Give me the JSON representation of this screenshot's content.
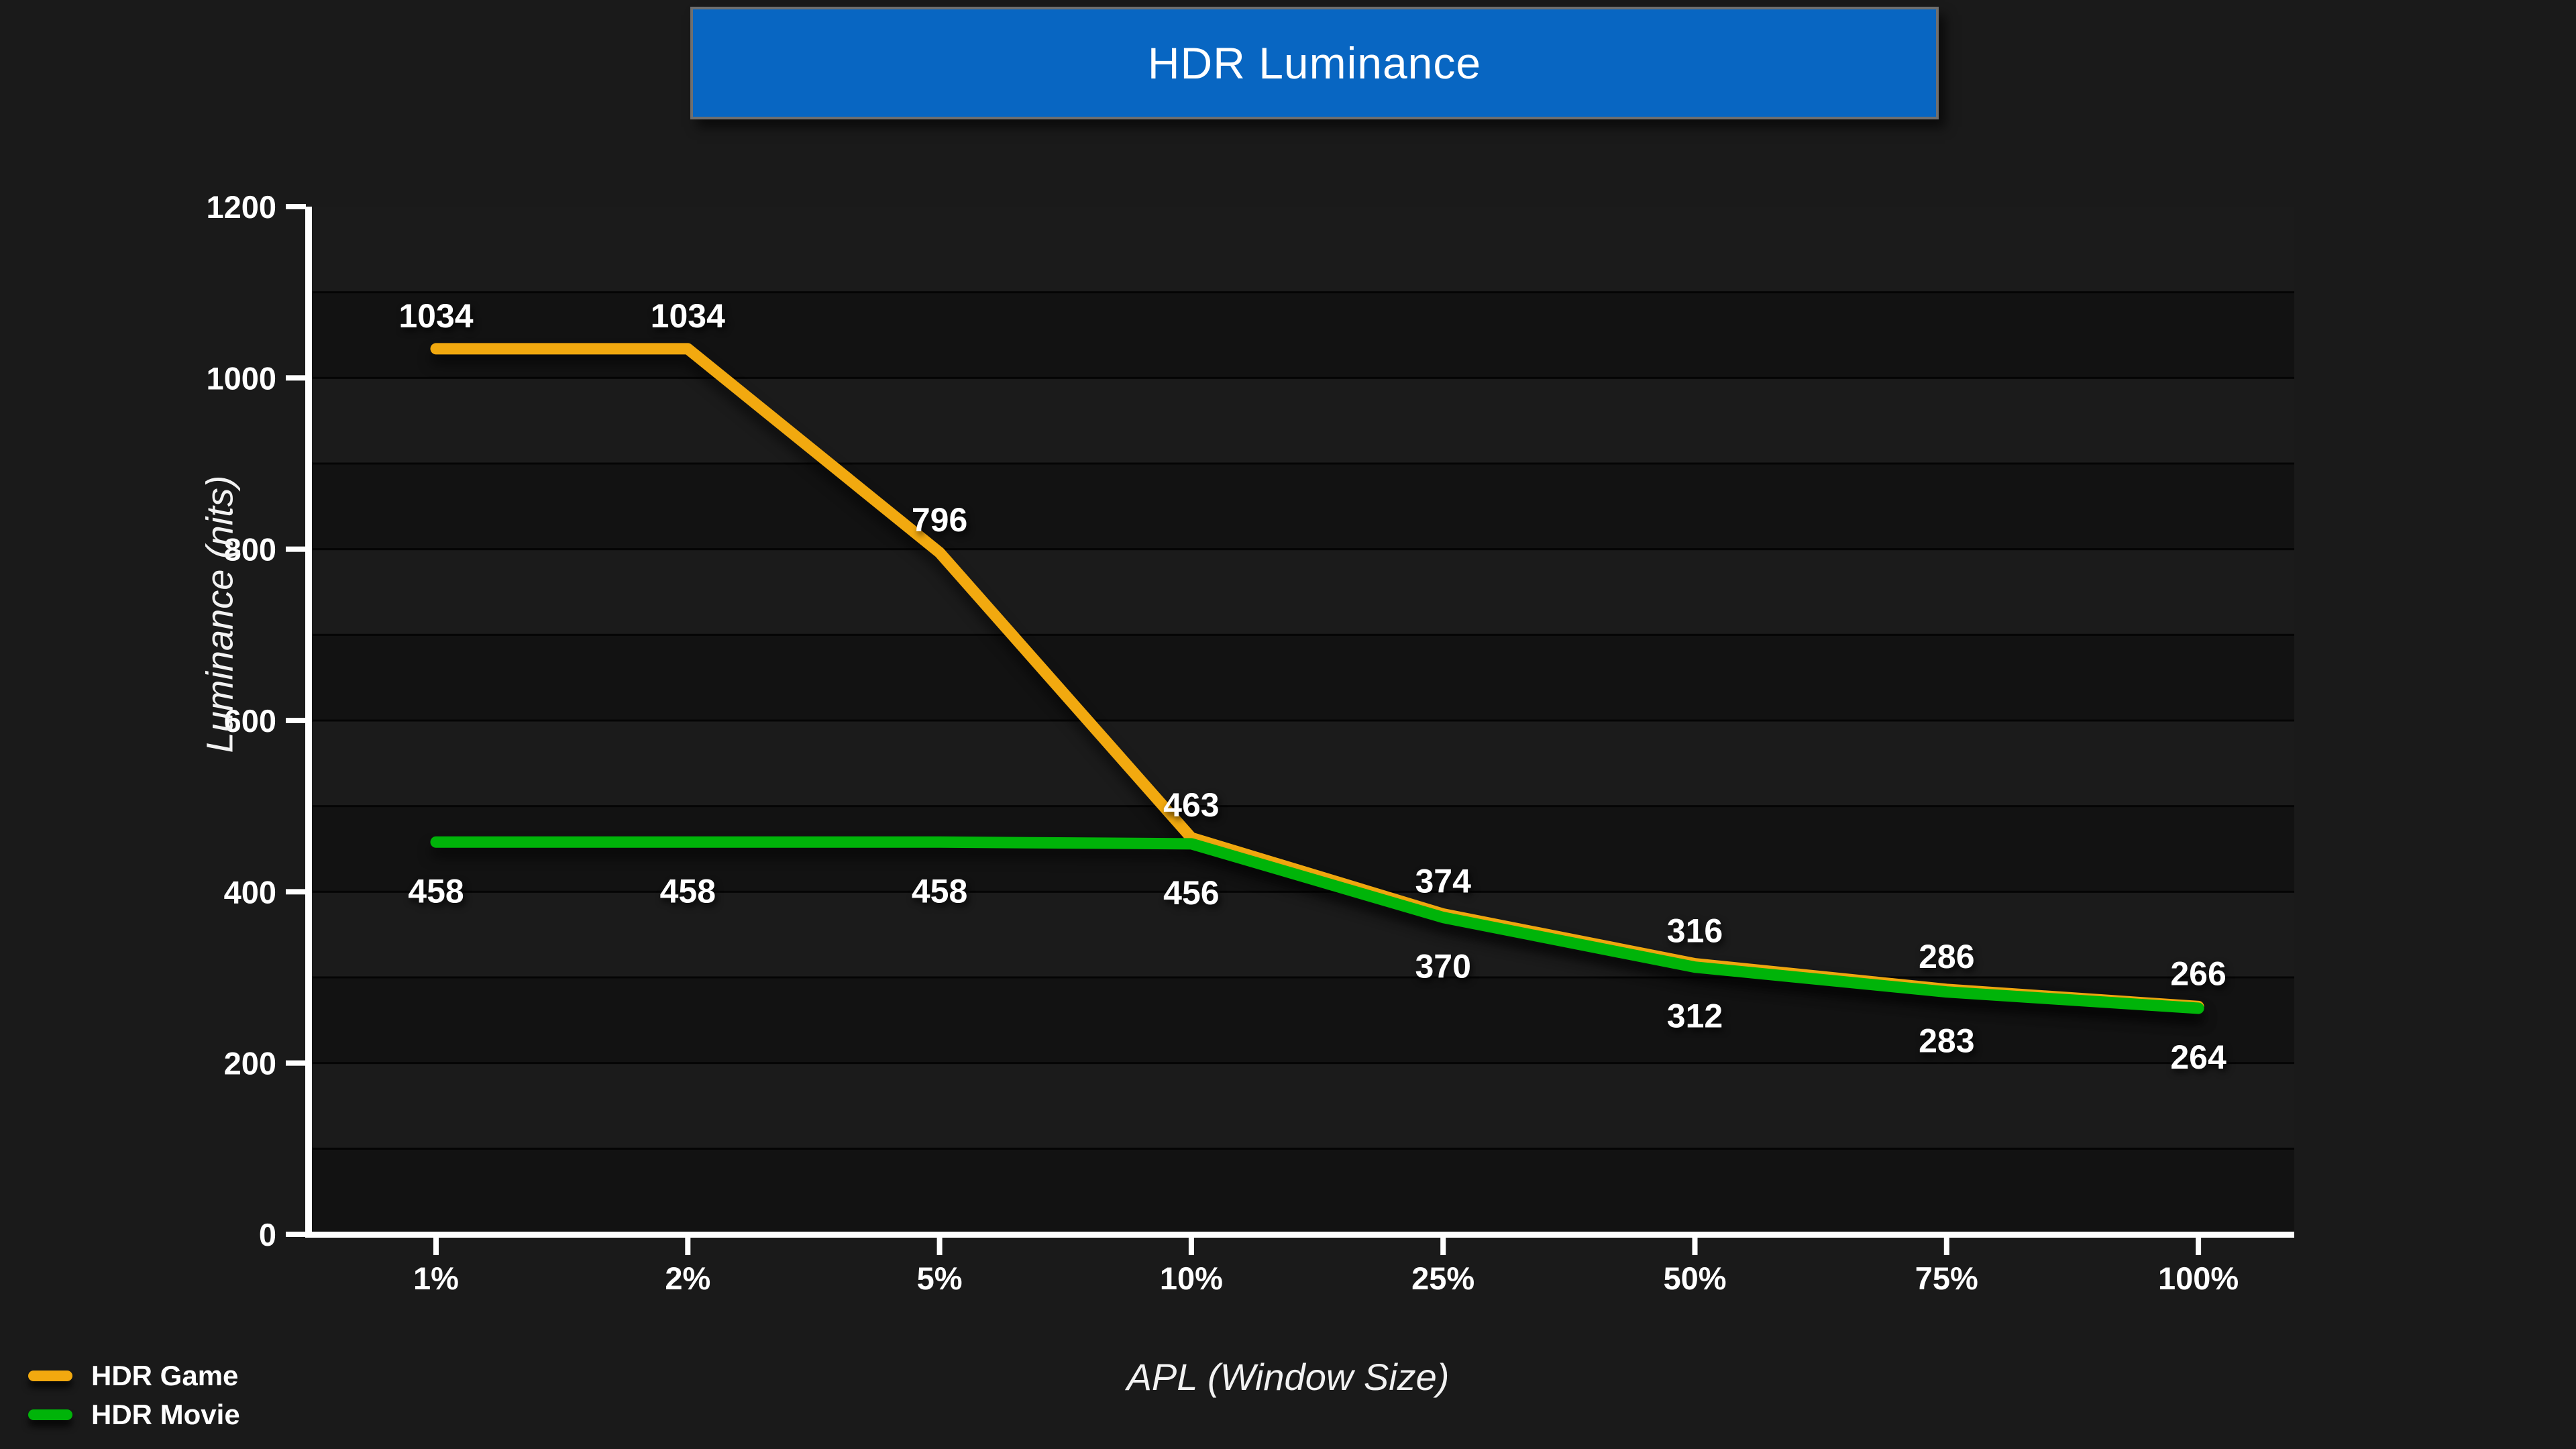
{
  "title": {
    "text": "HDR Luminance"
  },
  "colors": {
    "page_bg": "#1A1A1A",
    "banner_bg": "#0866C2",
    "banner_border": "#6F6F6F",
    "band_light": "#1B1B1B",
    "band_dark": "#121212",
    "gridline": "#050505",
    "axis": "#FFFFFF",
    "text": "#FFFFFF",
    "hdr_game": "#F2A90F",
    "hdr_movie": "#00B409"
  },
  "y_axis": {
    "title": "Luminance (nits)",
    "min": 0,
    "max": 1200,
    "tick_step": 200,
    "grid_step": 100,
    "ticks": [
      "0",
      "200",
      "400",
      "600",
      "800",
      "1000",
      "1200"
    ]
  },
  "x_axis": {
    "title": "APL (Window Size)",
    "categories": [
      "1%",
      "2%",
      "5%",
      "10%",
      "25%",
      "50%",
      "75%",
      "100%"
    ]
  },
  "legend": [
    {
      "label": "HDR Game",
      "color": "#F2A90F"
    },
    {
      "label": "HDR Movie",
      "color": "#00B409"
    }
  ],
  "chart_data": {
    "type": "line",
    "title": "HDR Luminance",
    "xlabel": "APL (Window Size)",
    "ylabel": "Luminance (nits)",
    "categories": [
      "1%",
      "2%",
      "5%",
      "10%",
      "25%",
      "50%",
      "75%",
      "100%"
    ],
    "series": [
      {
        "name": "HDR Game",
        "color": "#F2A90F",
        "values": [
          1034,
          1034,
          796,
          463,
          374,
          316,
          286,
          266
        ],
        "label_side": "above"
      },
      {
        "name": "HDR Movie",
        "color": "#00B409",
        "values": [
          458,
          458,
          458,
          456,
          370,
          312,
          283,
          264
        ],
        "label_side": "below"
      }
    ],
    "ylim": [
      0,
      1200
    ],
    "grid": "horizontal lines every 100 nits, alternating shaded bands",
    "legend_position": "bottom-left",
    "data_labels": true
  }
}
